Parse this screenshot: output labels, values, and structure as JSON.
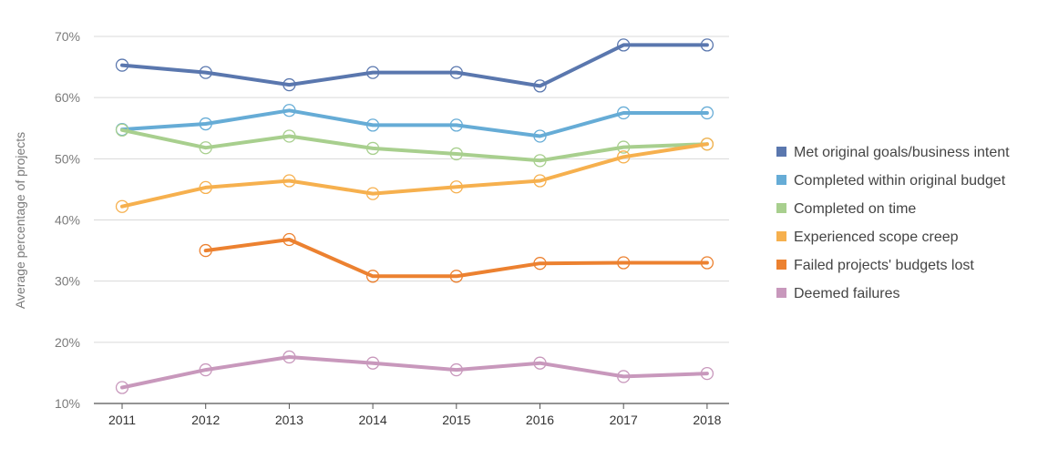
{
  "chart_data": {
    "type": "line",
    "title": "",
    "xlabel": "",
    "ylabel": "Average percentage of projects",
    "x": [
      "2011",
      "2012",
      "2013",
      "2014",
      "2015",
      "2016",
      "2017",
      "2018"
    ],
    "ylim": [
      10,
      70
    ],
    "yticks": [
      "10%",
      "20%",
      "30%",
      "40%",
      "50%",
      "60%",
      "70%"
    ],
    "grid": true,
    "legend_position": "right",
    "series": [
      {
        "name": "Met original goals/business intent",
        "color": "#5a77ae",
        "values": [
          65.3,
          64.1,
          62.1,
          64.1,
          64.1,
          61.9,
          68.6,
          68.6
        ]
      },
      {
        "name": "Completed within original budget",
        "color": "#66acd6",
        "values": [
          54.8,
          55.7,
          57.9,
          55.5,
          55.5,
          53.7,
          57.5,
          57.5
        ]
      },
      {
        "name": "Completed on time",
        "color": "#a8cf8e",
        "values": [
          54.7,
          51.8,
          53.7,
          51.7,
          50.8,
          49.7,
          51.9,
          52.4
        ]
      },
      {
        "name": "Experienced scope creep",
        "color": "#f6b04e",
        "values": [
          42.2,
          45.3,
          46.4,
          44.3,
          45.4,
          46.4,
          50.3,
          52.4
        ]
      },
      {
        "name": "Failed projects' budgets lost",
        "color": "#ec8130",
        "values": [
          null,
          35.0,
          36.8,
          30.8,
          30.8,
          32.9,
          33.0,
          33.0
        ]
      },
      {
        "name": "Deemed failures",
        "color": "#c898bc",
        "values": [
          12.6,
          15.5,
          17.6,
          16.6,
          15.5,
          16.6,
          14.4,
          14.9
        ]
      }
    ]
  }
}
